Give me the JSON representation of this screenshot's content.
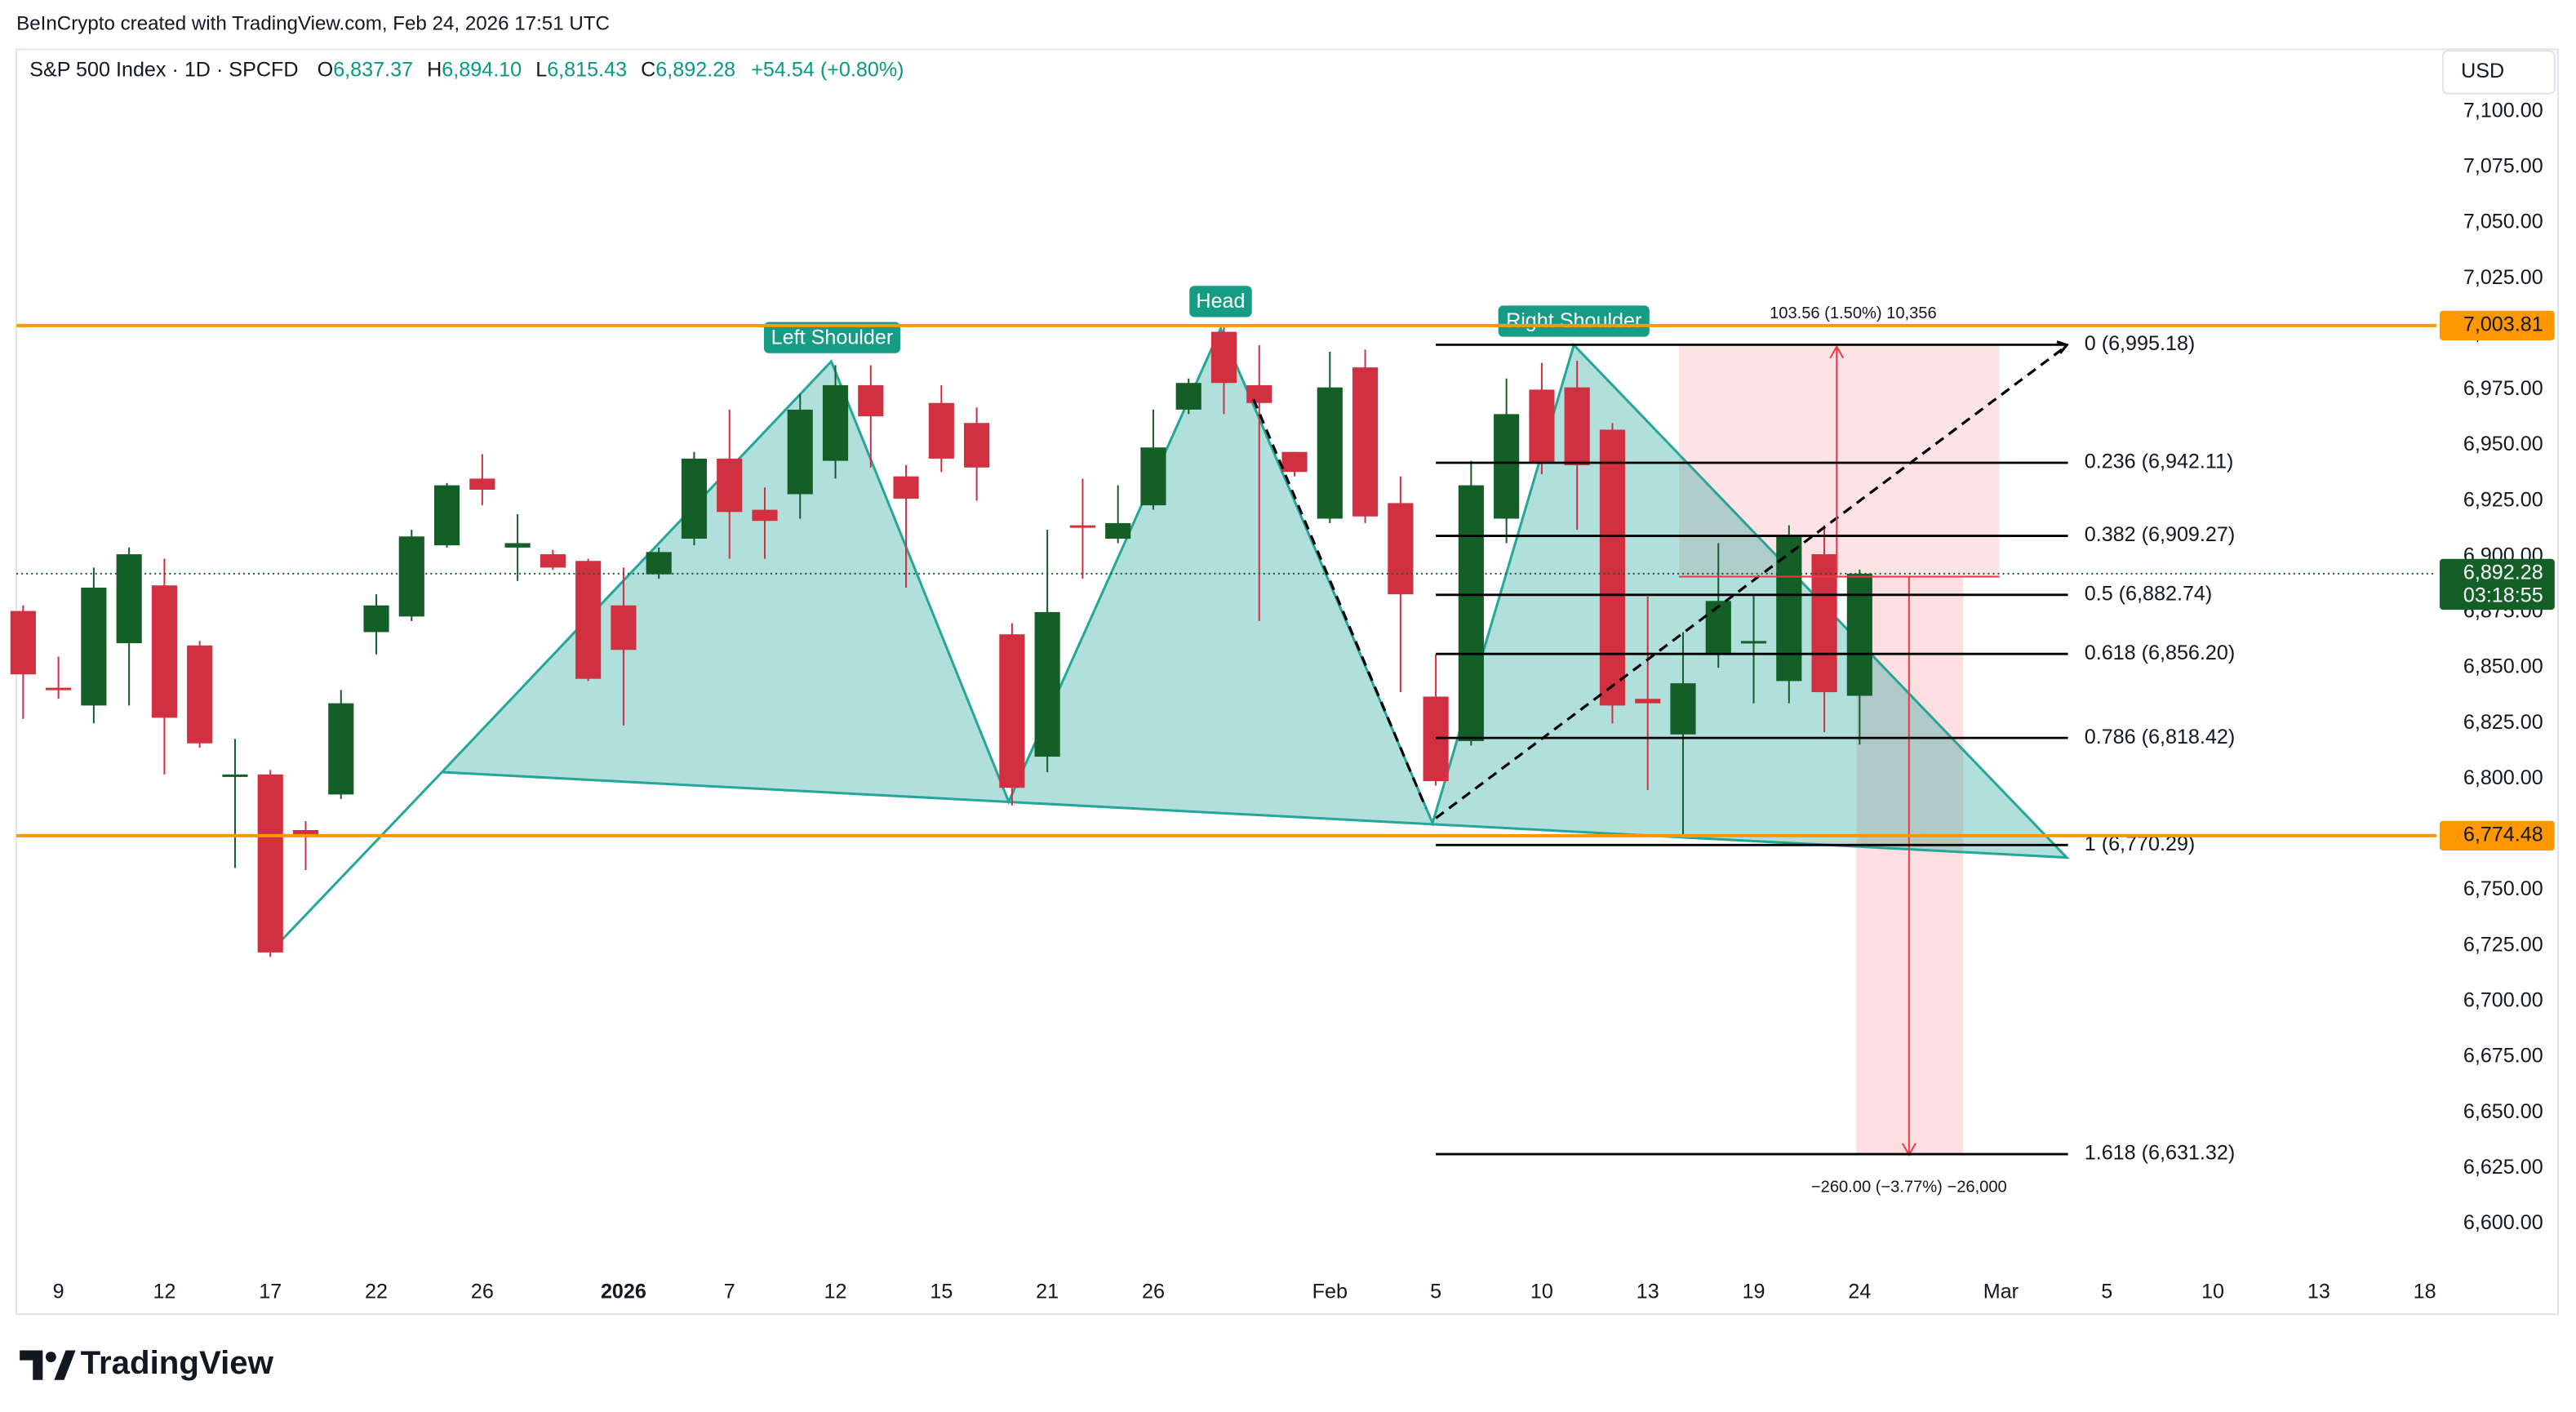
{
  "header": {
    "attribution": "BeInCrypto created with TradingView.com, Feb 24, 2026 17:51 UTC",
    "symbol": "S&P 500 Index · 1D · SPCFD",
    "ohlc": [
      {
        "key": "O",
        "value": "6,837.37"
      },
      {
        "key": "H",
        "value": "6,894.10"
      },
      {
        "key": "L",
        "value": "6,815.43"
      },
      {
        "key": "C",
        "value": "6,892.28"
      }
    ],
    "change": "+54.54 (+0.80%)"
  },
  "chart_data": {
    "type": "candlestick",
    "up_color": "#135f27",
    "down_color": "#d0303f",
    "candles": {
      "open": [
        6875.5,
        6841,
        6833,
        6861,
        6887,
        6860,
        6801,
        6802,
        6777,
        6793,
        6866,
        6873,
        6905,
        6935,
        6904,
        6901,
        6898,
        6878,
        6892,
        6908,
        6944,
        6921,
        6928,
        6943,
        6977,
        6936,
        6969,
        6960,
        6865,
        6810,
        6914,
        6908,
        6923,
        6966,
        7001,
        6977,
        6947,
        6917,
        6985,
        6924,
        6837,
        6817,
        6917,
        6975,
        6976,
        6957,
        6836,
        6820,
        6856,
        6861,
        6844,
        6901,
        6837.37
      ],
      "high": [
        6878,
        6855,
        6895,
        6904,
        6899,
        6862,
        6818,
        6804,
        6781,
        6840,
        6883,
        6912,
        6933,
        6946,
        6919,
        6903,
        6899,
        6895,
        6904,
        6947,
        6966,
        6931,
        6973,
        6986,
        6986,
        6941,
        6977,
        6967,
        6870,
        6912,
        6935,
        6932,
        6966,
        6980,
        7003,
        6995,
        6947,
        6992,
        6993,
        6936,
        6856,
        6943,
        6980,
        6987,
        6988,
        6960,
        6882,
        6866,
        6906,
        6883,
        6914,
        6914,
        6894.1
      ],
      "low": [
        6827,
        6836,
        6825,
        6833,
        6802,
        6814,
        6760,
        6720,
        6759,
        6791,
        6856,
        6871,
        6904,
        6923,
        6889,
        6894,
        6844,
        6824,
        6890,
        6905,
        6899,
        6899,
        6917,
        6935,
        6940,
        6886,
        6938,
        6925,
        6788,
        6803,
        6890,
        6906,
        6921,
        6964,
        6964,
        6871,
        6936,
        6915,
        6915,
        6839,
        6797,
        6815,
        6906,
        6937,
        6912,
        6825,
        6795,
        6775,
        6850,
        6834,
        6834,
        6821,
        6815.43
      ],
      "close": [
        6847,
        6840,
        6886,
        6901,
        6827.5,
        6816,
        6802,
        6722,
        6774,
        6834,
        6878,
        6909,
        6932,
        6930,
        6906,
        6895,
        6845,
        6858,
        6902,
        6944,
        6920,
        6916,
        6966,
        6977,
        6963,
        6926,
        6944,
        6940,
        6796,
        6875,
        6913,
        6915,
        6949,
        6978,
        6978,
        6969,
        6938,
        6976,
        6918,
        6883,
        6799,
        6932,
        6964,
        6942,
        6941,
        6833,
        6834,
        6843,
        6880,
        6862,
        6909,
        6839,
        6892.28
      ]
    },
    "ylim": [
      6581.5,
      7128
    ],
    "yticks": [
      {
        "value": 7100,
        "label": "7,100.00"
      },
      {
        "value": 7075,
        "label": "7,075.00"
      },
      {
        "value": 7050,
        "label": "7,050.00"
      },
      {
        "value": 7025,
        "label": "7,025.00"
      },
      {
        "value": 7000,
        "label": "7,000.00"
      },
      {
        "value": 6975,
        "label": "6,975.00"
      },
      {
        "value": 6950,
        "label": "6,950.00"
      },
      {
        "value": 6925,
        "label": "6,925.00"
      },
      {
        "value": 6900,
        "label": "6,900.00"
      },
      {
        "value": 6875,
        "label": "6,875.00"
      },
      {
        "value": 6850,
        "label": "6,850.00"
      },
      {
        "value": 6825,
        "label": "6,825.00"
      },
      {
        "value": 6800,
        "label": "6,800.00"
      },
      {
        "value": 6775,
        "label": "6,775.00"
      },
      {
        "value": 6750,
        "label": "6,750.00"
      },
      {
        "value": 6725,
        "label": "6,725.00"
      },
      {
        "value": 6700,
        "label": "6,700.00"
      },
      {
        "value": 6675,
        "label": "6,675.00"
      },
      {
        "value": 6650,
        "label": "6,650.00"
      },
      {
        "value": 6625,
        "label": "6,625.00"
      },
      {
        "value": 6600,
        "label": "6,600.00"
      }
    ],
    "xlim": [
      -0.19,
      68.33
    ],
    "xticks": [
      {
        "value": 1,
        "label": "9"
      },
      {
        "value": 4,
        "label": "12"
      },
      {
        "value": 7,
        "label": "17"
      },
      {
        "value": 10,
        "label": "22"
      },
      {
        "value": 13,
        "label": "26"
      },
      {
        "value": 17,
        "label": "2026",
        "bold": true
      },
      {
        "value": 20,
        "label": "7"
      },
      {
        "value": 23,
        "label": "12"
      },
      {
        "value": 26,
        "label": "15"
      },
      {
        "value": 29,
        "label": "21"
      },
      {
        "value": 32,
        "label": "26"
      },
      {
        "value": 37,
        "label": "Feb"
      },
      {
        "value": 40,
        "label": "5"
      },
      {
        "value": 43,
        "label": "10"
      },
      {
        "value": 46,
        "label": "13"
      },
      {
        "value": 49,
        "label": "19"
      },
      {
        "value": 52,
        "label": "24"
      },
      {
        "value": 56,
        "label": "Mar"
      },
      {
        "value": 59,
        "label": "5"
      },
      {
        "value": 62,
        "label": "10"
      },
      {
        "value": 65,
        "label": "13"
      },
      {
        "value": 68,
        "label": "18"
      }
    ],
    "currency": "USD",
    "levels": [
      {
        "value": 7003.81,
        "label": "7,003.81",
        "color": "#ff9800"
      },
      {
        "value": 6774.48,
        "label": "6,774.48",
        "color": "#ff9800"
      }
    ],
    "last_price": {
      "value": 6892.28,
      "label": "6,892.28",
      "countdown": "03:18:55",
      "color": "#135f27"
    },
    "fib": [
      {
        "value": 6995.18,
        "label": "0 (6,995.18)"
      },
      {
        "value": 6942.11,
        "label": "0.236 (6,942.11)"
      },
      {
        "value": 6909.27,
        "label": "0.382 (6,909.27)"
      },
      {
        "value": 6882.74,
        "label": "0.5 (6,882.74)"
      },
      {
        "value": 6856.2,
        "label": "0.618 (6,856.20)"
      },
      {
        "value": 6818.42,
        "label": "0.786 (6,818.42)"
      },
      {
        "value": 6770.29,
        "label": "1 (6,770.29)"
      },
      {
        "value": 6631.32,
        "label": "1.618 (6,631.32)"
      }
    ],
    "annotations": [
      "Left Shoulder",
      "Head",
      "Right Shoulder"
    ],
    "measures": [
      "103.56 (1.50%) 10,356",
      "−260.00 (−3.77%) −26,000"
    ]
  },
  "footer": {
    "logo": "TradingView"
  }
}
